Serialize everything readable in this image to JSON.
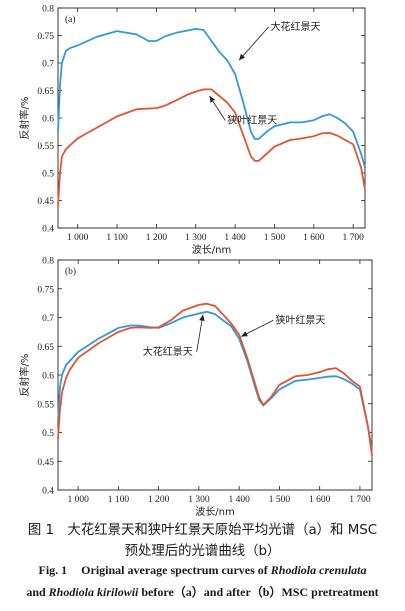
{
  "chart_data": [
    {
      "type": "line",
      "panel_label": "(a)",
      "xlabel": "波长/nm",
      "ylabel": "反射率/%",
      "xlim": [
        950,
        1730
      ],
      "ylim": [
        0.4,
        0.8
      ],
      "xticks": [
        1000,
        1100,
        1200,
        1300,
        1400,
        1500,
        1600,
        1700
      ],
      "xtick_labels": [
        "1 000",
        "1 100",
        "1 200",
        "1 300",
        "1 400",
        "1 500",
        "1 600",
        "1 700"
      ],
      "yticks": [
        0.4,
        0.45,
        0.5,
        0.55,
        0.6,
        0.65,
        0.7,
        0.75,
        0.8
      ],
      "ytick_labels": [
        "0.4",
        "0.45",
        "0.5",
        "0.55",
        "0.6",
        "0.65",
        "0.7",
        "0.75",
        "0.8"
      ],
      "series": [
        {
          "name": "大花红景天",
          "color": "#3399dd",
          "x": [
            950,
            955,
            960,
            970,
            980,
            1000,
            1050,
            1100,
            1150,
            1180,
            1200,
            1220,
            1250,
            1300,
            1320,
            1340,
            1360,
            1380,
            1400,
            1420,
            1440,
            1450,
            1460,
            1480,
            1500,
            1540,
            1570,
            1600,
            1620,
            1640,
            1660,
            1680,
            1700,
            1720,
            1730
          ],
          "y": [
            0.575,
            0.66,
            0.7,
            0.722,
            0.727,
            0.732,
            0.748,
            0.758,
            0.752,
            0.74,
            0.74,
            0.748,
            0.755,
            0.762,
            0.76,
            0.74,
            0.72,
            0.705,
            0.68,
            0.63,
            0.575,
            0.562,
            0.562,
            0.575,
            0.585,
            0.592,
            0.592,
            0.596,
            0.603,
            0.607,
            0.6,
            0.59,
            0.575,
            0.535,
            0.51
          ]
        },
        {
          "name": "狭叶红景天",
          "color": "#e05533",
          "x": [
            950,
            955,
            960,
            970,
            980,
            1000,
            1050,
            1100,
            1150,
            1200,
            1220,
            1250,
            1280,
            1300,
            1320,
            1340,
            1360,
            1380,
            1400,
            1420,
            1440,
            1450,
            1460,
            1480,
            1500,
            1540,
            1570,
            1600,
            1620,
            1640,
            1660,
            1680,
            1700,
            1720,
            1730
          ],
          "y": [
            0.44,
            0.5,
            0.53,
            0.543,
            0.55,
            0.563,
            0.583,
            0.603,
            0.616,
            0.618,
            0.622,
            0.632,
            0.643,
            0.648,
            0.652,
            0.652,
            0.64,
            0.628,
            0.61,
            0.57,
            0.53,
            0.522,
            0.522,
            0.535,
            0.548,
            0.56,
            0.563,
            0.567,
            0.572,
            0.573,
            0.568,
            0.56,
            0.552,
            0.51,
            0.47
          ]
        }
      ],
      "annotations": [
        {
          "text": "大花红景天",
          "series": "大花红景天",
          "x": 1410,
          "y": 0.705,
          "text_x": 1490,
          "text_y": 0.76
        },
        {
          "text": "狭叶红景天",
          "series": "狭叶红景天",
          "x": 1335,
          "y": 0.64,
          "text_x": 1380,
          "text_y": 0.59
        }
      ]
    },
    {
      "type": "line",
      "panel_label": "(b)",
      "xlabel": "波长/nm",
      "ylabel": "反射率/%",
      "xlim": [
        950,
        1730
      ],
      "ylim": [
        0.4,
        0.8
      ],
      "xticks": [
        1000,
        1100,
        1200,
        1300,
        1400,
        1500,
        1600,
        1700
      ],
      "xtick_labels": [
        "1 000",
        "1 100",
        "1 200",
        "1 300",
        "1 400",
        "1 500",
        "1 600",
        "1 700"
      ],
      "yticks": [
        0.4,
        0.45,
        0.5,
        0.55,
        0.6,
        0.65,
        0.7,
        0.75,
        0.8
      ],
      "ytick_labels": [
        "0.4",
        "0.45",
        "0.5",
        "0.55",
        "0.6",
        "0.65",
        "0.7",
        "0.75",
        "0.8"
      ],
      "series": [
        {
          "name": "大花红景天",
          "color": "#3399dd",
          "x": [
            950,
            955,
            960,
            970,
            980,
            1000,
            1050,
            1100,
            1130,
            1150,
            1180,
            1200,
            1230,
            1260,
            1300,
            1320,
            1340,
            1360,
            1380,
            1400,
            1420,
            1440,
            1450,
            1460,
            1480,
            1500,
            1540,
            1570,
            1600,
            1620,
            1640,
            1660,
            1680,
            1700,
            1720,
            1730
          ],
          "y": [
            0.52,
            0.58,
            0.6,
            0.618,
            0.625,
            0.64,
            0.663,
            0.682,
            0.686,
            0.686,
            0.683,
            0.682,
            0.69,
            0.7,
            0.707,
            0.71,
            0.706,
            0.695,
            0.685,
            0.663,
            0.625,
            0.578,
            0.556,
            0.547,
            0.56,
            0.575,
            0.59,
            0.592,
            0.595,
            0.597,
            0.598,
            0.593,
            0.585,
            0.575,
            0.51,
            0.47
          ]
        },
        {
          "name": "狭叶红景天",
          "color": "#e05533",
          "x": [
            950,
            955,
            960,
            970,
            980,
            1000,
            1050,
            1100,
            1130,
            1150,
            1180,
            1200,
            1230,
            1260,
            1300,
            1320,
            1340,
            1360,
            1380,
            1400,
            1420,
            1440,
            1450,
            1460,
            1480,
            1500,
            1540,
            1570,
            1600,
            1620,
            1640,
            1660,
            1680,
            1700,
            1720,
            1730
          ],
          "y": [
            0.49,
            0.54,
            0.57,
            0.595,
            0.61,
            0.63,
            0.655,
            0.675,
            0.682,
            0.683,
            0.682,
            0.683,
            0.695,
            0.712,
            0.722,
            0.724,
            0.72,
            0.705,
            0.69,
            0.67,
            0.63,
            0.583,
            0.56,
            0.548,
            0.562,
            0.583,
            0.598,
            0.6,
            0.605,
            0.61,
            0.612,
            0.603,
            0.59,
            0.58,
            0.51,
            0.46
          ]
        }
      ],
      "annotations": [
        {
          "text": "大花红景天",
          "series": "大花红景天",
          "x": 1310,
          "y": 0.705,
          "text_x": 1230,
          "text_y": 0.635
        },
        {
          "text": "狭叶红景天",
          "series": "狭叶红景天",
          "x": 1405,
          "y": 0.667,
          "text_x": 1490,
          "text_y": 0.69
        }
      ]
    }
  ],
  "caption": {
    "cn_line1": "图 1　大花红景天和狭叶红景天原始平均光谱（a）和 MSC",
    "cn_line2": "预处理后的光谱曲线（b）",
    "en_fig": "Fig. 1",
    "en_line1_text": "Original average spectrum curves of",
    "en_species1": "Rhodiola crenulata",
    "en_and": "and",
    "en_species2": "Rhodiola kirilowii",
    "en_line2_text": "before（a）and after（b）MSC pretreatment"
  }
}
